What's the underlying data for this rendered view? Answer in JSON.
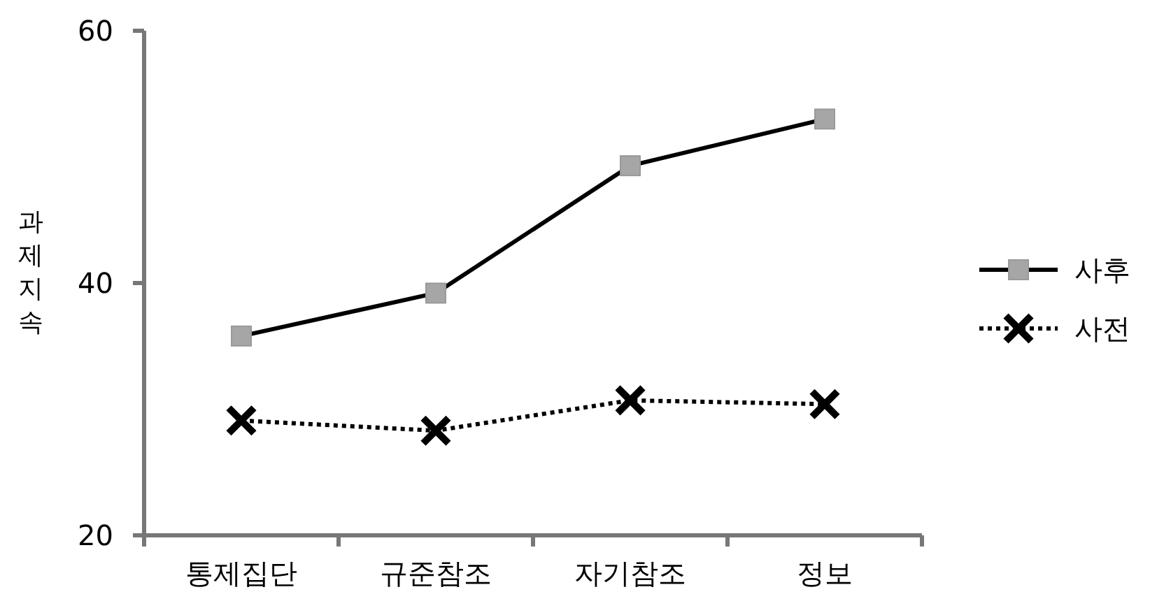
{
  "chart_data": {
    "type": "line",
    "ylabel": "과제지속",
    "categories": [
      "통제집단",
      "규준참조",
      "자기참조",
      "정보"
    ],
    "series": [
      {
        "name": "사후",
        "color": "#000000",
        "values": [
          35.8,
          39.2,
          49.3,
          53.0
        ],
        "marker": "square",
        "line_style": "solid"
      },
      {
        "name": "사전",
        "color": "#000000",
        "values": [
          29.1,
          28.3,
          30.7,
          30.4
        ],
        "marker": "cross",
        "line_style": "dotted"
      }
    ],
    "ylim": [
      20,
      60
    ],
    "yticks": [
      20,
      40,
      60
    ],
    "grid": false,
    "legend": "right"
  }
}
